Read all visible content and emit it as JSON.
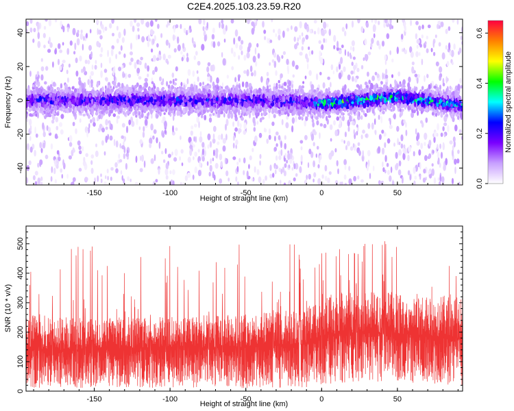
{
  "title": "C2E4.2025.103.23.59.R20",
  "chart_data": [
    {
      "type": "heatmap",
      "xlabel": "Height of straight line (km)",
      "ylabel": "Frequency (Hz)",
      "xlim": [
        -195,
        93
      ],
      "ylim": [
        -50,
        48
      ],
      "xticks": [
        -150,
        -100,
        -50,
        0,
        50
      ],
      "yticks": [
        -40,
        -20,
        0,
        20,
        40
      ],
      "grid": false,
      "colorbar": {
        "label": "Normalized spectral amplitude",
        "range": [
          0,
          0.65
        ],
        "ticks": [
          "0.0",
          "0.2",
          "0.4",
          "0.6"
        ],
        "colors": [
          "#ffffff",
          "#c8a0ff",
          "#7a00ff",
          "#0000ff",
          "#00ffff",
          "#00ff00",
          "#ffff00",
          "#ff8000",
          "#ff0040"
        ]
      },
      "band": [
        {
          "x": -195,
          "center": 0,
          "halfwidth": 7,
          "peak": 0.22
        },
        {
          "x": -150,
          "center": 0,
          "halfwidth": 7,
          "peak": 0.22
        },
        {
          "x": -100,
          "center": 0,
          "halfwidth": 7,
          "peak": 0.24
        },
        {
          "x": -50,
          "center": 0,
          "halfwidth": 7,
          "peak": 0.22
        },
        {
          "x": -10,
          "center": -1,
          "halfwidth": 7,
          "peak": 0.22
        },
        {
          "x": 0,
          "center": -2,
          "halfwidth": 6,
          "peak": 0.36
        },
        {
          "x": 25,
          "center": 0,
          "halfwidth": 6,
          "peak": 0.4
        },
        {
          "x": 50,
          "center": 2,
          "halfwidth": 6,
          "peak": 0.36
        },
        {
          "x": 93,
          "center": -3,
          "halfwidth": 6,
          "peak": 0.3
        }
      ]
    },
    {
      "type": "line",
      "xlabel": "Height of straight line (km)",
      "ylabel": "SNR (10 * v/v)",
      "xlim": [
        -195,
        93
      ],
      "ylim": [
        0,
        560
      ],
      "xticks": [
        -150,
        -100,
        -50,
        0,
        50
      ],
      "yticks": [
        0,
        100,
        200,
        300,
        400,
        500
      ],
      "grid": false,
      "color": "#ee3333",
      "envelope": [
        {
          "x": -195,
          "low": 10,
          "mean": 140,
          "high": 260
        },
        {
          "x": -150,
          "low": 10,
          "mean": 140,
          "high": 250
        },
        {
          "x": -100,
          "low": 10,
          "mean": 145,
          "high": 255
        },
        {
          "x": -50,
          "low": 10,
          "mean": 150,
          "high": 260
        },
        {
          "x": -10,
          "low": 10,
          "mean": 160,
          "high": 280
        },
        {
          "x": 0,
          "low": 20,
          "mean": 190,
          "high": 330
        },
        {
          "x": 25,
          "low": 30,
          "mean": 200,
          "high": 340
        },
        {
          "x": 50,
          "low": 30,
          "mean": 195,
          "high": 335
        },
        {
          "x": 93,
          "low": 20,
          "mean": 180,
          "high": 320
        }
      ]
    }
  ]
}
